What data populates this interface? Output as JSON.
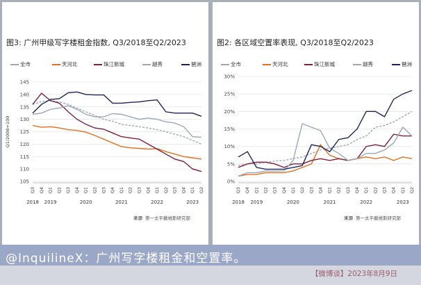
{
  "chart_data": [
    {
      "type": "line",
      "title": "图3: 广州甲级写字楼租金指数, Q3/2018至Q2/2023",
      "ylabel": "Q1/2008=100",
      "ylim": [
        105,
        145
      ],
      "yticks": [
        105,
        110,
        115,
        120,
        125,
        130,
        135,
        140,
        145
      ],
      "categories": [
        "Q3",
        "Q4",
        "Q1",
        "Q2",
        "Q3",
        "Q4",
        "Q1",
        "Q2",
        "Q3",
        "Q4",
        "Q1",
        "Q2",
        "Q3",
        "Q4",
        "Q1",
        "Q2",
        "Q3",
        "Q4",
        "Q1",
        "Q2"
      ],
      "years": [
        "2018",
        "2019",
        "2020",
        "2021",
        "2022",
        "2023"
      ],
      "grid": true,
      "legend_position": "top",
      "series": [
        {
          "name": "全市",
          "color": "#9aa7b5",
          "dashed": true,
          "values": [
            136.0,
            137.2,
            137.5,
            137.0,
            136.0,
            134.5,
            133.0,
            131.5,
            130.0,
            129.2,
            128.0,
            127.5,
            127.0,
            126.5,
            125.8,
            125.0,
            124.0,
            123.0,
            121.5,
            120.0
          ]
        },
        {
          "name": "天河北",
          "color": "#e07020",
          "values": [
            127.5,
            126.8,
            127.0,
            126.5,
            125.8,
            125.5,
            124.8,
            123.5,
            122.0,
            120.5,
            119.0,
            118.5,
            118.3,
            118.0,
            118.2,
            117.0,
            116.0,
            115.0,
            114.5,
            114.0
          ]
        },
        {
          "name": "珠江新城",
          "color": "#7a1f3a",
          "values": [
            136.0,
            140.5,
            137.5,
            136.5,
            133.0,
            130.0,
            128.0,
            126.5,
            126.0,
            124.5,
            123.0,
            122.5,
            122.0,
            120.0,
            118.0,
            116.0,
            114.0,
            113.0,
            110.0,
            109.0
          ]
        },
        {
          "name": "越秀",
          "color": "#9aa7b5",
          "values": [
            132.0,
            132.5,
            134.0,
            134.5,
            135.5,
            134.0,
            132.0,
            131.0,
            131.0,
            132.3,
            132.0,
            131.0,
            130.0,
            130.5,
            130.0,
            129.0,
            128.5,
            127.0,
            123.0,
            122.8
          ]
        },
        {
          "name": "琶洲",
          "color": "#1b2456",
          "values": [
            132.5,
            136.0,
            138.0,
            138.3,
            140.7,
            141.0,
            140.0,
            139.8,
            139.8,
            136.5,
            136.5,
            136.8,
            137.0,
            137.5,
            137.8,
            133.0,
            132.5,
            132.5,
            132.5,
            131.2
          ]
        }
      ]
    },
    {
      "type": "line",
      "title": "图2: 各区域空置率表现, Q3/2018至Q2/2023",
      "ylim": [
        0,
        30
      ],
      "yticks": [
        "0%",
        "5%",
        "10%",
        "15%",
        "20%",
        "25%",
        "30%"
      ],
      "categories": [
        "Q3",
        "Q4",
        "Q1",
        "Q2",
        "Q3",
        "Q4",
        "Q1",
        "Q2",
        "Q3",
        "Q4",
        "Q1",
        "Q2",
        "Q3",
        "Q4",
        "Q1",
        "Q2",
        "Q3",
        "Q4",
        "Q1",
        "Q2"
      ],
      "years": [
        "2018",
        "2019",
        "2020",
        "2021",
        "2022",
        "2023"
      ],
      "grid": true,
      "legend_position": "top",
      "series": [
        {
          "name": "全市",
          "color": "#9aa7b5",
          "dashed": true,
          "values": [
            4.5,
            5.0,
            5.0,
            5.5,
            5.8,
            6.0,
            6.5,
            7.0,
            8.0,
            9.0,
            9.5,
            10.0,
            10.5,
            12.0,
            13.0,
            15.5,
            16.0,
            17.0,
            18.5,
            20.0
          ]
        },
        {
          "name": "天河北",
          "color": "#e07020",
          "values": [
            1.5,
            2.0,
            2.0,
            2.5,
            2.5,
            2.5,
            3.0,
            4.0,
            5.0,
            10.5,
            7.5,
            6.5,
            6.0,
            6.5,
            7.0,
            6.5,
            7.0,
            6.0,
            7.0,
            6.5
          ]
        },
        {
          "name": "珠江新城",
          "color": "#7a1f3a",
          "values": [
            4.0,
            5.0,
            5.5,
            5.5,
            5.0,
            4.0,
            5.0,
            5.0,
            6.0,
            6.5,
            6.0,
            6.5,
            6.0,
            6.5,
            10.0,
            10.5,
            10.0,
            13.5,
            13.0,
            13.0
          ]
        },
        {
          "name": "越秀",
          "color": "#9aa7b5",
          "values": [
            1.5,
            2.5,
            2.5,
            3.0,
            3.0,
            3.0,
            6.0,
            16.5,
            15.5,
            14.5,
            9.5,
            8.0,
            6.0,
            6.5,
            8.0,
            8.0,
            9.0,
            11.0,
            15.5,
            13.0
          ]
        },
        {
          "name": "琶洲",
          "color": "#1b2456",
          "values": [
            7.0,
            8.5,
            4.0,
            3.5,
            3.5,
            3.5,
            4.0,
            4.5,
            10.5,
            10.0,
            8.5,
            12.0,
            12.5,
            15.0,
            20.0,
            20.0,
            18.5,
            23.5,
            25.0,
            26.0
          ]
        }
      ]
    }
  ],
  "source_note": {
    "label": "来源",
    "text": "第一太平戴维斯研究部"
  },
  "caption": "@InquilineX：广州写字楼租金和空置率。",
  "footer": "【微博谈】2023年8月9日"
}
